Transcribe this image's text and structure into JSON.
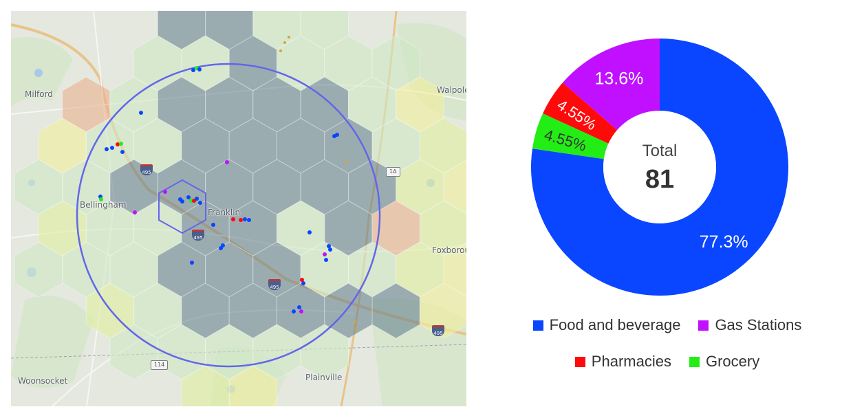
{
  "map": {
    "towns": {
      "milford": "Milford",
      "walpole": "Walpole",
      "bellingham": "Bellingham",
      "franklin": "Franklin",
      "foxborough": "Foxborou",
      "woonsocket": "Woonsocket",
      "plainville": "Plainville"
    },
    "route_shields": {
      "r1a": "1A",
      "r114": "114"
    },
    "interstates": {
      "i495_a": "495",
      "i495_b": "495",
      "i495_c": "495",
      "i495_d": "495"
    },
    "colors": {
      "radius_circle": "#6366e8",
      "hex_dark": "#5f7a8a",
      "hex_light_green": "#cfe8c4",
      "hex_yellow_green": "#dfee9e",
      "hex_yellow": "#f1ef9b",
      "hex_orange": "#eab08d"
    }
  },
  "chart_data": {
    "type": "pie",
    "donut": true,
    "center_label": "Total",
    "total": "81",
    "slices": [
      {
        "name": "Food and beverage",
        "value": 77.3,
        "label": "77.3%",
        "color": "#0a46ff"
      },
      {
        "name": "Grocery",
        "value": 4.55,
        "label": "4.55%",
        "color": "#22ee16"
      },
      {
        "name": "Pharmacies",
        "value": 4.55,
        "label": "4.55%",
        "color": "#ff0a0a"
      },
      {
        "name": "Gas Stations",
        "value": 13.6,
        "label": "13.6%",
        "color": "#c010ff"
      }
    ],
    "legend": [
      {
        "name": "Food and beverage",
        "color": "#0a46ff"
      },
      {
        "name": "Gas Stations",
        "color": "#c010ff"
      },
      {
        "name": "Pharmacies",
        "color": "#ff0a0a"
      },
      {
        "name": "Grocery",
        "color": "#22ee16"
      }
    ],
    "legend_position": "bottom"
  }
}
